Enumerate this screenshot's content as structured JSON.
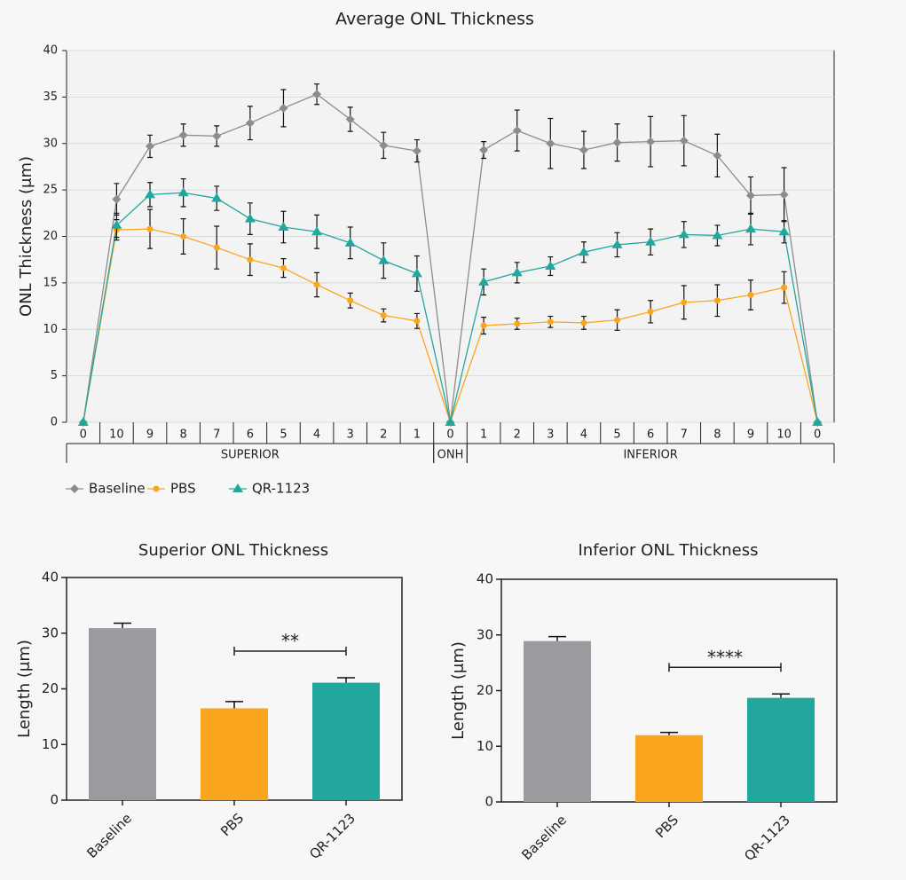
{
  "chart_data": [
    {
      "type": "line",
      "title": "Average ONL Thickness",
      "y_label": "ONL Thickness (μm)",
      "categories": [
        "0",
        "10",
        "9",
        "8",
        "7",
        "6",
        "5",
        "4",
        "3",
        "2",
        "1",
        "0",
        "1",
        "2",
        "3",
        "4",
        "5",
        "6",
        "7",
        "8",
        "9",
        "10",
        "0"
      ],
      "groups": [
        {
          "label": "SUPERIOR",
          "start": 0,
          "end": 10
        },
        {
          "label": "ONH",
          "start": 11,
          "end": 11
        },
        {
          "label": "INFERIOR",
          "start": 12,
          "end": 22
        }
      ],
      "ylim": [
        0,
        40
      ],
      "yticks": [
        0,
        5,
        10,
        15,
        20,
        25,
        30,
        35,
        40
      ],
      "grid": true,
      "series": [
        {
          "name": "Baseline",
          "color": "#8c8c8c",
          "marker": "diamond",
          "values": [
            0,
            24,
            29.7,
            30.9,
            30.8,
            32.2,
            33.8,
            35.3,
            32.6,
            29.8,
            29.2,
            0,
            29.3,
            31.4,
            30.0,
            29.3,
            30.1,
            30.2,
            30.3,
            28.7,
            24.4,
            24.5,
            0
          ],
          "errors": [
            0,
            1.7,
            1.2,
            1.2,
            1.1,
            1.8,
            2.0,
            1.1,
            1.3,
            1.4,
            1.2,
            0,
            0.9,
            2.2,
            2.7,
            2.0,
            2.0,
            2.7,
            2.7,
            2.3,
            2.0,
            2.9,
            0
          ]
        },
        {
          "name": "PBS",
          "color": "#f9a61e",
          "marker": "circle",
          "values": [
            0,
            20.7,
            20.8,
            20.0,
            18.8,
            17.5,
            16.6,
            14.8,
            13.1,
            11.5,
            10.9,
            0,
            10.4,
            10.6,
            10.8,
            10.7,
            11.0,
            11.9,
            12.9,
            13.1,
            13.7,
            14.5,
            0
          ],
          "errors": [
            0,
            1.1,
            2.1,
            1.9,
            2.3,
            1.7,
            1.0,
            1.3,
            0.8,
            0.7,
            0.8,
            0,
            0.9,
            0.6,
            0.6,
            0.7,
            1.1,
            1.2,
            1.8,
            1.7,
            1.6,
            1.7,
            0
          ]
        },
        {
          "name": "QR-1123",
          "color": "#21a79d",
          "marker": "triangle",
          "values": [
            0,
            21.2,
            24.5,
            24.7,
            24.1,
            21.9,
            21.0,
            20.5,
            19.3,
            17.4,
            16.0,
            0,
            15.1,
            16.1,
            16.8,
            18.3,
            19.1,
            19.4,
            20.2,
            20.1,
            20.8,
            20.5,
            0
          ],
          "errors": [
            0,
            1.3,
            1.3,
            1.5,
            1.3,
            1.7,
            1.7,
            1.8,
            1.7,
            1.9,
            1.9,
            0,
            1.4,
            1.1,
            1.0,
            1.1,
            1.3,
            1.4,
            1.4,
            1.1,
            1.7,
            1.2,
            0
          ]
        }
      ]
    },
    {
      "type": "bar",
      "title": "Superior ONL Thickness",
      "y_label": "Length (μm)",
      "categories": [
        "Baseline",
        "PBS",
        "QR-1123"
      ],
      "colors": [
        "#9b9a9f",
        "#f9a61e",
        "#21a79d"
      ],
      "values": [
        30.9,
        16.5,
        21.1
      ],
      "errors": [
        0.9,
        1.2,
        0.9
      ],
      "ylim": [
        0,
        40
      ],
      "yticks": [
        0,
        10,
        20,
        30,
        40
      ],
      "significance": {
        "text": "**",
        "from": 1,
        "to": 2
      }
    },
    {
      "type": "bar",
      "title": "Inferior ONL Thickness",
      "y_label": "Length (μm)",
      "categories": [
        "Baseline",
        "PBS",
        "QR-1123"
      ],
      "colors": [
        "#9b9a9f",
        "#f9a61e",
        "#21a79d"
      ],
      "values": [
        28.9,
        12.0,
        18.7
      ],
      "errors": [
        0.8,
        0.5,
        0.7
      ],
      "ylim": [
        0,
        40
      ],
      "yticks": [
        0,
        10,
        20,
        30,
        40
      ],
      "significance": {
        "text": "****",
        "from": 1,
        "to": 2
      }
    }
  ]
}
